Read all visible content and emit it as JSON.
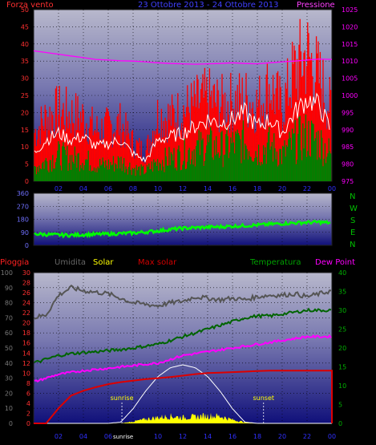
{
  "colors": {
    "wind": "#ff0000",
    "pressure": "#ff00ff",
    "avg_wind": "#ffffff",
    "gust_base": "#008000",
    "direction": "#00ff00",
    "humidity": "#555555",
    "solar": "#ffff00",
    "max_solar": "#ffffff",
    "rain": "#dd0000",
    "temperature": "#006400",
    "dew_point": "#ff00ff",
    "axis_left": "#ff3030",
    "axis_right_top": "#ff00ff",
    "axis_mid": "#7070ff",
    "axis_green": "#00b000"
  },
  "chart_data": [
    {
      "type": "line",
      "title": "",
      "header_left": "Forza vento",
      "header_center": "23 Ottobre 2013 - 24 Ottobre 2013",
      "header_right": "Pressione",
      "xlabel": "",
      "ylabel": "Forza vento",
      "y2label": "Pressione",
      "xticks": [
        "02",
        "04",
        "06",
        "08",
        "10",
        "12",
        "14",
        "16",
        "18",
        "20",
        "22",
        "00"
      ],
      "yticks_left": [
        0,
        5,
        10,
        15,
        20,
        25,
        30,
        35,
        40,
        45,
        50
      ],
      "yticks_right": [
        975,
        980,
        985,
        990,
        995,
        1000,
        1005,
        1010,
        1015,
        1020,
        1025
      ],
      "ylim": [
        0,
        50
      ],
      "y2lim": [
        975,
        1025
      ],
      "grid": true,
      "x_hours": [
        0,
        1,
        2,
        3,
        4,
        5,
        6,
        7,
        8,
        9,
        10,
        11,
        12,
        13,
        14,
        15,
        16,
        17,
        18,
        19,
        20,
        21,
        22,
        23,
        24
      ],
      "series": [
        {
          "name": "Forza vento",
          "axis": "left",
          "values": [
            15,
            20,
            22,
            21,
            20,
            16,
            17,
            18,
            12,
            9,
            21,
            20,
            22,
            24,
            26,
            24,
            25,
            26,
            24,
            30,
            23,
            35,
            40,
            32,
            22
          ]
        },
        {
          "name": "",
          "axis": "left",
          "values": [
            8,
            12,
            14,
            12,
            13,
            10,
            11,
            12,
            8,
            6,
            12,
            13,
            14,
            16,
            18,
            17,
            18,
            20,
            16,
            18,
            14,
            20,
            24,
            22,
            14
          ]
        },
        {
          "name": "",
          "axis": "left",
          "values": [
            4,
            6,
            8,
            7,
            7,
            5,
            5,
            6,
            4,
            3,
            6,
            7,
            8,
            10,
            11,
            10,
            11,
            12,
            9,
            11,
            8,
            12,
            14,
            12,
            8
          ]
        },
        {
          "name": "Pressione",
          "axis": "right",
          "values": [
            1013,
            1012.5,
            1012,
            1011.5,
            1011,
            1010.5,
            1010.3,
            1010.1,
            1010,
            1009.8,
            1009.5,
            1009.3,
            1009.2,
            1009.1,
            1009.2,
            1009.3,
            1009.5,
            1009.3,
            1009.2,
            1009.5,
            1009.8,
            1010,
            1010.3,
            1010.6,
            1010.5
          ]
        }
      ]
    },
    {
      "type": "line",
      "title": "",
      "ylabel": "",
      "yticks": [
        0,
        90,
        180,
        270,
        360
      ],
      "ylim": [
        0,
        360
      ],
      "compass": [
        "N",
        "W",
        "S",
        "E",
        "N"
      ],
      "grid": true,
      "x_hours": [
        0,
        1,
        2,
        3,
        4,
        5,
        6,
        7,
        8,
        9,
        10,
        11,
        12,
        13,
        14,
        15,
        16,
        17,
        18,
        19,
        20,
        21,
        22,
        23,
        24
      ],
      "series": [
        {
          "name": "",
          "values": [
            80,
            75,
            72,
            70,
            74,
            76,
            78,
            82,
            85,
            92,
            100,
            110,
            118,
            122,
            125,
            128,
            132,
            136,
            140,
            146,
            150,
            155,
            158,
            160,
            155
          ]
        }
      ]
    },
    {
      "type": "line",
      "title": "",
      "legend": [
        "Pioggia",
        "Umidita",
        "Solar",
        "Max solar",
        "Temperatura",
        "Dew Point"
      ],
      "xticks": [
        "02",
        "04",
        "06",
        "08",
        "10",
        "12",
        "14",
        "16",
        "18",
        "20",
        "22",
        "00"
      ],
      "yticks_hum": [
        0,
        10,
        20,
        30,
        40,
        50,
        60,
        70,
        80,
        90,
        100
      ],
      "yticks_rain": [
        0,
        2,
        4,
        6,
        8,
        10,
        12,
        14,
        16,
        18,
        20,
        22,
        24,
        26,
        28,
        30
      ],
      "yticks_temp": [
        0,
        5,
        10,
        15,
        20,
        25,
        30,
        35,
        40
      ],
      "hum_ylim": [
        0,
        100
      ],
      "rain_ylim": [
        0,
        30
      ],
      "temp_ylim": [
        0,
        40
      ],
      "annotations": [
        "sunrise",
        "sunset",
        "sunrise"
      ],
      "grid": true,
      "x_hours": [
        0,
        1,
        2,
        3,
        4,
        5,
        6,
        7,
        8,
        9,
        10,
        11,
        12,
        13,
        14,
        15,
        16,
        17,
        18,
        19,
        20,
        21,
        22,
        23,
        24
      ],
      "series": [
        {
          "name": "Umidita",
          "axis": "hum",
          "values": [
            70,
            72,
            85,
            90,
            88,
            87,
            86,
            83,
            80,
            79,
            78,
            80,
            81,
            84,
            83,
            82,
            83,
            82,
            84,
            85,
            85,
            86,
            84,
            86,
            88
          ]
        },
        {
          "name": "Pioggia",
          "axis": "rain",
          "values": [
            0,
            0,
            3,
            5.5,
            6.5,
            7.2,
            7.8,
            8.2,
            8.5,
            8.8,
            9,
            9.2,
            9.5,
            9.8,
            10,
            10.1,
            10.2,
            10.3,
            10.4,
            10.5,
            10.5,
            10.5,
            10.5,
            10.5,
            10.5
          ]
        },
        {
          "name": "Temperatura",
          "axis": "temp",
          "values": [
            16,
            17,
            18,
            18.5,
            18.8,
            19,
            19.3,
            19.6,
            20,
            20.5,
            21,
            22,
            23,
            24,
            25,
            26,
            27,
            28,
            28.5,
            28.5,
            29,
            29.5,
            30,
            30,
            30
          ]
        },
        {
          "name": "Dew Point",
          "axis": "temp",
          "values": [
            11,
            12,
            13,
            13.5,
            14,
            14.3,
            14.6,
            15,
            15.3,
            15.7,
            16,
            17,
            18,
            18.5,
            19,
            19.5,
            20,
            20.5,
            21,
            21.5,
            22,
            22.5,
            23,
            23,
            23
          ]
        },
        {
          "name": "Max solar",
          "axis": "solar",
          "values": [
            0,
            0,
            0,
            0,
            0,
            0,
            0,
            0.02,
            0.25,
            0.55,
            0.8,
            0.95,
            1.0,
            0.95,
            0.8,
            0.55,
            0.25,
            0.02,
            0,
            0,
            0,
            0,
            0,
            0,
            0
          ]
        },
        {
          "name": "Solar",
          "axis": "solar",
          "values": [
            0,
            0,
            0,
            0,
            0,
            0,
            0,
            0,
            0.03,
            0.07,
            0.1,
            0.12,
            0.1,
            0.11,
            0.13,
            0.12,
            0.06,
            0.02,
            0,
            0,
            0,
            0,
            0,
            0,
            0
          ]
        }
      ]
    }
  ]
}
